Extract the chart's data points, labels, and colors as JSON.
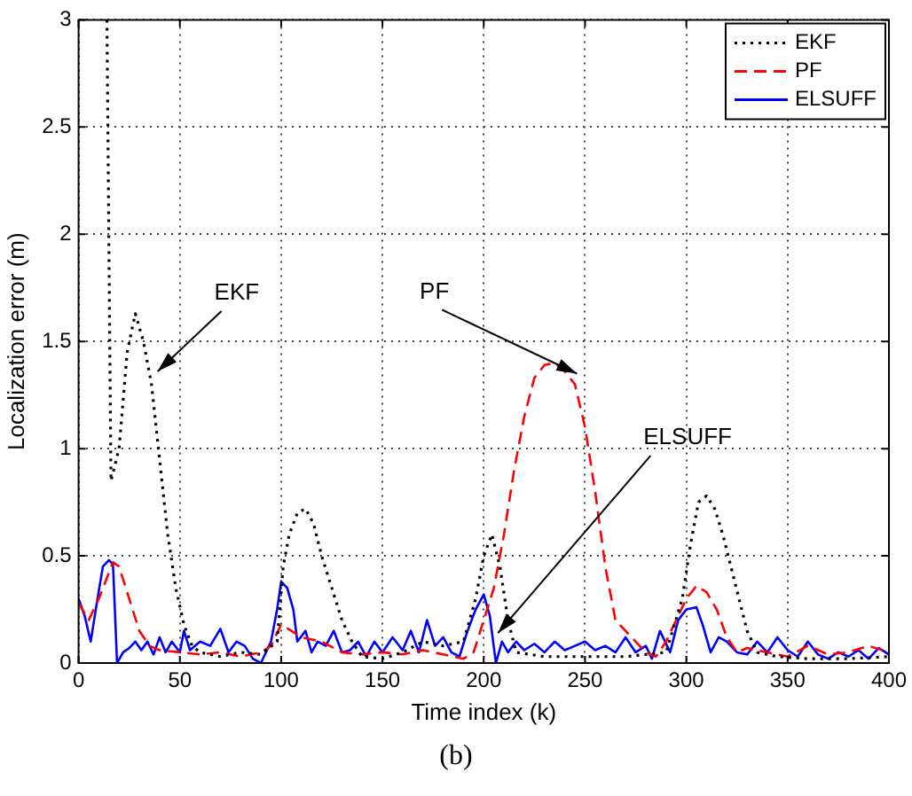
{
  "chart_data": {
    "type": "line",
    "xlabel": "Time index (k)",
    "ylabel": "Localization error (m)",
    "xlim": [
      0,
      400
    ],
    "xticks": [
      0,
      50,
      100,
      150,
      200,
      250,
      300,
      350,
      400
    ],
    "ylim": [
      0,
      3
    ],
    "yticks": [
      0,
      0.5,
      1,
      1.5,
      2,
      2.5,
      3
    ],
    "grid": true,
    "legend": "top right",
    "marker": "none",
    "series": [
      {
        "name": "EKF",
        "color": "#000000",
        "line_style": "dotted",
        "x": [
          14,
          16,
          20,
          24,
          28,
          32,
          36,
          40,
          44,
          48,
          52,
          56,
          60,
          70,
          80,
          90,
          98,
          101,
          104,
          108,
          112,
          116,
          120,
          125,
          130,
          135,
          140,
          150,
          160,
          170,
          180,
          190,
          196,
          200,
          204,
          208,
          212,
          216,
          230,
          250,
          270,
          290,
          298,
          302,
          306,
          310,
          314,
          318,
          322,
          326,
          330,
          335,
          345,
          360,
          380,
          400
        ],
        "values": [
          3,
          0.85,
          1.0,
          1.45,
          1.63,
          1.5,
          1.3,
          0.95,
          0.6,
          0.35,
          0.18,
          0.08,
          0.05,
          0.03,
          0.05,
          0.04,
          0.1,
          0.45,
          0.6,
          0.7,
          0.72,
          0.65,
          0.5,
          0.35,
          0.2,
          0.1,
          0.03,
          0.02,
          0.05,
          0.1,
          0.08,
          0.1,
          0.3,
          0.5,
          0.6,
          0.45,
          0.2,
          0.05,
          0.03,
          0.03,
          0.03,
          0.05,
          0.3,
          0.55,
          0.75,
          0.78,
          0.72,
          0.6,
          0.45,
          0.3,
          0.15,
          0.05,
          0.03,
          0.02,
          0.02,
          0.03
        ]
      },
      {
        "name": "PF",
        "color": "#ff0000",
        "line_style": "dashed",
        "x": [
          0,
          5,
          10,
          17,
          20,
          25,
          30,
          35,
          40,
          50,
          60,
          70,
          80,
          90,
          95,
          100,
          105,
          110,
          120,
          130,
          140,
          150,
          160,
          170,
          180,
          190,
          195,
          200,
          205,
          210,
          215,
          220,
          225,
          230,
          235,
          240,
          245,
          250,
          255,
          260,
          265,
          270,
          275,
          280,
          285,
          290,
          295,
          300,
          305,
          310,
          315,
          320,
          325,
          330,
          340,
          350,
          360,
          370,
          380,
          390,
          400
        ],
        "values": [
          0.28,
          0.2,
          0.3,
          0.47,
          0.45,
          0.3,
          0.15,
          0.08,
          0.06,
          0.05,
          0.04,
          0.05,
          0.03,
          0.05,
          0.08,
          0.18,
          0.15,
          0.12,
          0.1,
          0.05,
          0.04,
          0.05,
          0.04,
          0.06,
          0.04,
          0.02,
          0.05,
          0.2,
          0.35,
          0.6,
          0.9,
          1.15,
          1.33,
          1.39,
          1.4,
          1.36,
          1.3,
          1.1,
          0.8,
          0.45,
          0.2,
          0.15,
          0.1,
          0.05,
          0.03,
          0.1,
          0.2,
          0.3,
          0.36,
          0.33,
          0.25,
          0.12,
          0.05,
          0.07,
          0.05,
          0.03,
          0.08,
          0.04,
          0.05,
          0.08,
          0.05
        ]
      },
      {
        "name": "ELSUFF",
        "color": "#0000ff",
        "line_style": "solid",
        "x": [
          0,
          3,
          6,
          9,
          12,
          15,
          17,
          19,
          22,
          25,
          28,
          31,
          34,
          37,
          40,
          43,
          46,
          50,
          52,
          55,
          60,
          65,
          70,
          74,
          78,
          82,
          86,
          90,
          95,
          98,
          100,
          103,
          106,
          108,
          112,
          115,
          118,
          122,
          126,
          130,
          134,
          138,
          142,
          146,
          150,
          155,
          160,
          164,
          168,
          172,
          176,
          180,
          184,
          188,
          192,
          196,
          200,
          203,
          206,
          209,
          212,
          216,
          220,
          225,
          230,
          235,
          240,
          245,
          250,
          255,
          260,
          265,
          270,
          275,
          280,
          283,
          287,
          292,
          296,
          300,
          305,
          308,
          312,
          316,
          320,
          325,
          330,
          335,
          340,
          345,
          350,
          355,
          360,
          365,
          370,
          375,
          380,
          385,
          390,
          395,
          400
        ],
        "values": [
          0.3,
          0.22,
          0.1,
          0.28,
          0.45,
          0.48,
          0.46,
          0.0,
          0.05,
          0.07,
          0.1,
          0.06,
          0.1,
          0.04,
          0.12,
          0.05,
          0.1,
          0.05,
          0.15,
          0.06,
          0.1,
          0.08,
          0.16,
          0.05,
          0.1,
          0.08,
          0.02,
          0.0,
          0.1,
          0.25,
          0.38,
          0.35,
          0.25,
          0.1,
          0.15,
          0.05,
          0.1,
          0.08,
          0.15,
          0.05,
          0.06,
          0.1,
          0.03,
          0.1,
          0.05,
          0.12,
          0.06,
          0.15,
          0.05,
          0.2,
          0.08,
          0.12,
          0.05,
          0.03,
          0.15,
          0.25,
          0.32,
          0.22,
          0.0,
          0.1,
          0.05,
          0.1,
          0.06,
          0.09,
          0.05,
          0.1,
          0.06,
          0.08,
          0.1,
          0.06,
          0.08,
          0.05,
          0.12,
          0.05,
          0.08,
          0.02,
          0.15,
          0.05,
          0.2,
          0.25,
          0.26,
          0.18,
          0.05,
          0.12,
          0.1,
          0.05,
          0.04,
          0.1,
          0.05,
          0.12,
          0.06,
          0.03,
          0.1,
          0.04,
          0.02,
          0.05,
          0.03,
          0.06,
          0.02,
          0.07,
          0.04
        ]
      }
    ],
    "annotations": [
      {
        "text": "EKF",
        "x": 39,
        "y": 1.36
      },
      {
        "text": "PF",
        "x": 246,
        "y": 1.35
      },
      {
        "text": "ELSUFF",
        "x": 207,
        "y": 0.14
      },
      "(b)"
    ]
  }
}
